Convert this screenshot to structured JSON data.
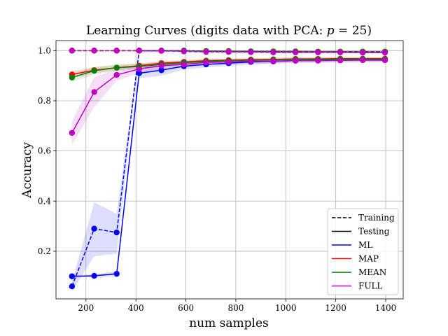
{
  "chart_data": {
    "type": "line",
    "title": "Learning Curves (digits data with PCA: p = 25)",
    "title_prefix": "Learning Curves (digits data with PCA: ",
    "title_var": "p",
    "title_suffix": " = 25)",
    "xlabel": "num samples",
    "ylabel": "Accuracy",
    "xlim": [
      80,
      1470
    ],
    "ylim": [
      0.01,
      1.04
    ],
    "xticks": [
      200,
      400,
      600,
      800,
      1000,
      1200,
      1400
    ],
    "yticks": [
      0.2,
      0.4,
      0.6,
      0.8,
      1.0
    ],
    "xtick_labels": [
      "200",
      "400",
      "600",
      "800",
      "1000",
      "1200",
      "1400"
    ],
    "ytick_labels": [
      "0.2",
      "0.4",
      "0.6",
      "0.8",
      "1.0"
    ],
    "grid": true,
    "legend_position": "lower-right",
    "legend": [
      {
        "label": "Training",
        "style": "dashed",
        "color": "#000000"
      },
      {
        "label": "Testing",
        "style": "solid",
        "color": "#000000"
      },
      {
        "label": "ML",
        "style": "solid",
        "color": "#0000ff"
      },
      {
        "label": "MAP",
        "style": "solid",
        "color": "#ff0000"
      },
      {
        "label": "MEAN",
        "style": "solid",
        "color": "#008000"
      },
      {
        "label": "FULL",
        "style": "solid",
        "color": "#bf00bf"
      }
    ],
    "x": [
      144,
      233,
      323,
      413,
      502,
      592,
      681,
      771,
      860,
      950,
      1039,
      1129,
      1218,
      1308,
      1397
    ],
    "series": [
      {
        "name": "ML",
        "split": "Training",
        "color": "#0000ff",
        "dashed": true,
        "values": [
          0.06,
          0.29,
          0.275,
          1.0,
          1.0,
          1.0,
          0.998,
          0.997,
          0.996,
          0.996,
          0.995,
          0.995,
          0.995,
          0.994,
          0.994
        ],
        "band": [
          [
            0.04,
            0.08
          ],
          [
            0.18,
            0.395
          ],
          [
            0.19,
            0.35
          ],
          [
            0.99,
            1.0
          ],
          [
            0.995,
            1.0
          ],
          [
            0.995,
            1.0
          ],
          [
            0.994,
            1.0
          ],
          [
            0.993,
            1.0
          ],
          [
            0.993,
            1.0
          ],
          [
            0.992,
            1.0
          ],
          [
            0.991,
            0.999
          ],
          [
            0.991,
            0.999
          ],
          [
            0.991,
            0.999
          ],
          [
            0.99,
            0.998
          ],
          [
            0.99,
            0.998
          ]
        ]
      },
      {
        "name": "ML",
        "split": "Testing",
        "color": "#0000ff",
        "dashed": false,
        "values": [
          0.1,
          0.102,
          0.11,
          0.91,
          0.922,
          0.938,
          0.945,
          0.95,
          0.955,
          0.957,
          0.96,
          0.961,
          0.962,
          0.963,
          0.963
        ],
        "band": [
          [
            0.095,
            0.105
          ],
          [
            0.097,
            0.107
          ],
          [
            0.1,
            0.12
          ],
          [
            0.89,
            0.93
          ],
          [
            0.9,
            0.944
          ],
          [
            0.925,
            0.951
          ],
          [
            0.933,
            0.957
          ],
          [
            0.939,
            0.961
          ],
          [
            0.945,
            0.965
          ],
          [
            0.948,
            0.966
          ],
          [
            0.952,
            0.968
          ],
          [
            0.953,
            0.969
          ],
          [
            0.955,
            0.969
          ],
          [
            0.956,
            0.97
          ],
          [
            0.956,
            0.97
          ]
        ]
      },
      {
        "name": "MAP",
        "split": "Training",
        "color": "#ff0000",
        "dashed": true,
        "values": [
          1.0,
          1.0,
          1.0,
          1.0,
          1.0,
          0.999,
          0.998,
          0.998,
          0.997,
          0.997,
          0.997,
          0.996,
          0.996,
          0.996,
          0.996
        ],
        "band": [
          [
            0.998,
            1.0
          ],
          [
            0.998,
            1.0
          ],
          [
            0.998,
            1.0
          ],
          [
            0.997,
            1.0
          ],
          [
            0.997,
            1.0
          ],
          [
            0.996,
            1.0
          ],
          [
            0.995,
            1.0
          ],
          [
            0.995,
            1.0
          ],
          [
            0.994,
            1.0
          ],
          [
            0.994,
            1.0
          ],
          [
            0.994,
            1.0
          ],
          [
            0.993,
            0.999
          ],
          [
            0.993,
            0.999
          ],
          [
            0.993,
            0.999
          ],
          [
            0.993,
            0.999
          ]
        ]
      },
      {
        "name": "MAP",
        "split": "Testing",
        "color": "#ff0000",
        "dashed": false,
        "values": [
          0.905,
          0.922,
          0.932,
          0.94,
          0.95,
          0.955,
          0.96,
          0.962,
          0.964,
          0.965,
          0.967,
          0.967,
          0.968,
          0.968,
          0.968
        ],
        "band": [
          [
            0.89,
            0.92
          ],
          [
            0.91,
            0.934
          ],
          [
            0.922,
            0.942
          ],
          [
            0.93,
            0.95
          ],
          [
            0.941,
            0.959
          ],
          [
            0.947,
            0.963
          ],
          [
            0.952,
            0.968
          ],
          [
            0.955,
            0.969
          ],
          [
            0.957,
            0.971
          ],
          [
            0.958,
            0.972
          ],
          [
            0.96,
            0.974
          ],
          [
            0.96,
            0.974
          ],
          [
            0.961,
            0.975
          ],
          [
            0.961,
            0.975
          ],
          [
            0.961,
            0.975
          ]
        ]
      },
      {
        "name": "MEAN",
        "split": "Training",
        "color": "#008000",
        "dashed": true,
        "values": [
          1.0,
          1.0,
          1.0,
          1.0,
          1.0,
          0.999,
          0.998,
          0.997,
          0.997,
          0.996,
          0.996,
          0.995,
          0.995,
          0.995,
          0.995
        ],
        "band": [
          [
            0.998,
            1.0
          ],
          [
            0.998,
            1.0
          ],
          [
            0.998,
            1.0
          ],
          [
            0.997,
            1.0
          ],
          [
            0.997,
            1.0
          ],
          [
            0.996,
            1.0
          ],
          [
            0.995,
            1.0
          ],
          [
            0.994,
            1.0
          ],
          [
            0.994,
            1.0
          ],
          [
            0.993,
            0.999
          ],
          [
            0.993,
            0.999
          ],
          [
            0.992,
            0.998
          ],
          [
            0.992,
            0.998
          ],
          [
            0.992,
            0.998
          ],
          [
            0.992,
            0.998
          ]
        ]
      },
      {
        "name": "MEAN",
        "split": "Testing",
        "color": "#008000",
        "dashed": false,
        "values": [
          0.893,
          0.92,
          0.932,
          0.937,
          0.945,
          0.952,
          0.957,
          0.96,
          0.962,
          0.963,
          0.965,
          0.965,
          0.966,
          0.966,
          0.966
        ],
        "band": [
          [
            0.875,
            0.91
          ],
          [
            0.905,
            0.935
          ],
          [
            0.92,
            0.944
          ],
          [
            0.926,
            0.948
          ],
          [
            0.935,
            0.955
          ],
          [
            0.943,
            0.961
          ],
          [
            0.949,
            0.965
          ],
          [
            0.953,
            0.967
          ],
          [
            0.955,
            0.969
          ],
          [
            0.956,
            0.97
          ],
          [
            0.958,
            0.972
          ],
          [
            0.958,
            0.972
          ],
          [
            0.959,
            0.973
          ],
          [
            0.959,
            0.973
          ],
          [
            0.959,
            0.973
          ]
        ]
      },
      {
        "name": "FULL",
        "split": "Training",
        "color": "#bf00bf",
        "dashed": true,
        "values": [
          1.0,
          1.0,
          1.0,
          1.0,
          0.999,
          0.997,
          0.995,
          0.995,
          0.994,
          0.993,
          0.993,
          0.993,
          0.993,
          0.992,
          0.992
        ],
        "band": [
          [
            0.998,
            1.0
          ],
          [
            0.998,
            1.0
          ],
          [
            0.998,
            1.0
          ],
          [
            0.997,
            1.0
          ],
          [
            0.996,
            1.0
          ],
          [
            0.994,
            1.0
          ],
          [
            0.992,
            0.998
          ],
          [
            0.992,
            0.998
          ],
          [
            0.991,
            0.997
          ],
          [
            0.99,
            0.996
          ],
          [
            0.99,
            0.996
          ],
          [
            0.99,
            0.996
          ],
          [
            0.99,
            0.996
          ],
          [
            0.989,
            0.995
          ],
          [
            0.989,
            0.995
          ]
        ]
      },
      {
        "name": "FULL",
        "split": "Testing",
        "color": "#bf00bf",
        "dashed": false,
        "values": [
          0.672,
          0.835,
          0.903,
          0.927,
          0.94,
          0.945,
          0.953,
          0.955,
          0.958,
          0.958,
          0.96,
          0.96,
          0.961,
          0.962,
          0.962
        ],
        "band": [
          [
            0.625,
            0.72
          ],
          [
            0.775,
            0.895
          ],
          [
            0.88,
            0.925
          ],
          [
            0.91,
            0.944
          ],
          [
            0.925,
            0.955
          ],
          [
            0.933,
            0.957
          ],
          [
            0.942,
            0.964
          ],
          [
            0.945,
            0.965
          ],
          [
            0.948,
            0.968
          ],
          [
            0.949,
            0.967
          ],
          [
            0.951,
            0.969
          ],
          [
            0.951,
            0.969
          ],
          [
            0.952,
            0.97
          ],
          [
            0.953,
            0.971
          ],
          [
            0.953,
            0.971
          ]
        ]
      }
    ]
  }
}
